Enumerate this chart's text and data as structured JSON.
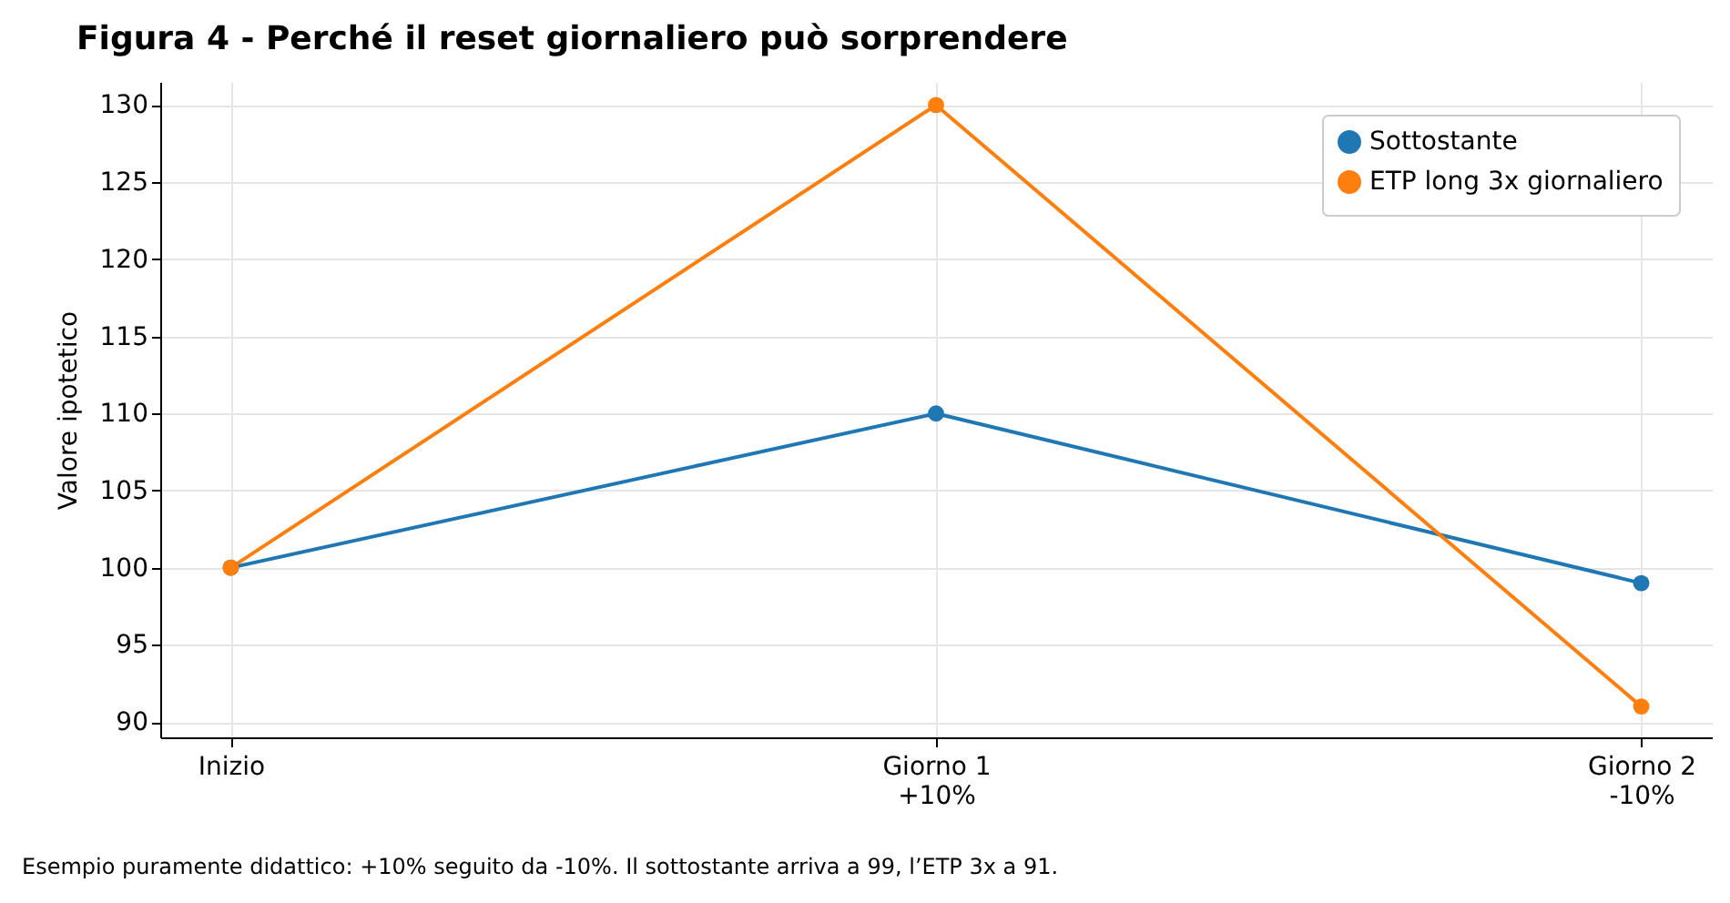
{
  "chart_data": {
    "type": "line",
    "title": "Figura 4 - Perché il reset giornaliero può sorprendere",
    "ylabel": "Valore ipotetico",
    "categories": [
      "Inizio",
      "Giorno 1\n+10%",
      "Giorno 2\n-10%"
    ],
    "series": [
      {
        "name": "Sottostante",
        "color": "#1f77b4",
        "values": [
          100,
          110,
          99
        ]
      },
      {
        "name": "ETP long 3x giornaliero",
        "color": "#ff7f0e",
        "values": [
          100,
          130,
          91
        ]
      }
    ],
    "ylim": [
      89,
      131.5
    ],
    "yticks": [
      90,
      95,
      100,
      105,
      110,
      115,
      120,
      125,
      130
    ],
    "grid": true,
    "legend": "top right",
    "marker": "circle",
    "line_style": "solid",
    "annotations": [
      "Esempio puramente didattico: +10% seguito da -10%. Il sottostante arriva a 99, l’ETP 3x a 91."
    ]
  }
}
